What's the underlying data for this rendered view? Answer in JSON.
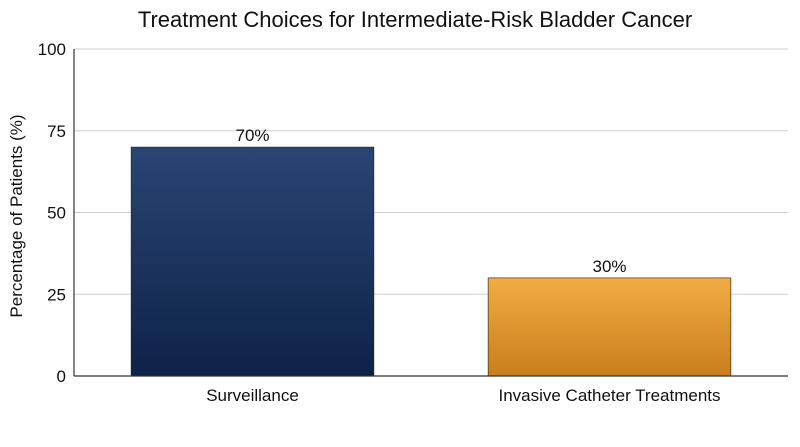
{
  "chart_data": {
    "type": "bar",
    "title": "Treatment Choices for Intermediate-Risk Bladder Cancer",
    "xlabel": "",
    "ylabel": "Percentage of Patients (%)",
    "categories": [
      "Surveillance",
      "Invasive Catheter Treatments"
    ],
    "values": [
      70,
      30
    ],
    "data_labels": [
      "70%",
      "30%"
    ],
    "ylim": [
      0,
      100
    ],
    "yticks": [
      0,
      25,
      50,
      75,
      100
    ],
    "ytick_labels": [
      "0",
      "25",
      "50",
      "75",
      "100"
    ],
    "grid": true,
    "legend": "none",
    "colors": {
      "bars": [
        {
          "top": "#2a4573",
          "bottom": "#0d2248"
        },
        {
          "top": "#f2ac45",
          "bottom": "#c97e1c"
        }
      ],
      "grid": "#cfcfcf",
      "axis": "#333333"
    }
  }
}
